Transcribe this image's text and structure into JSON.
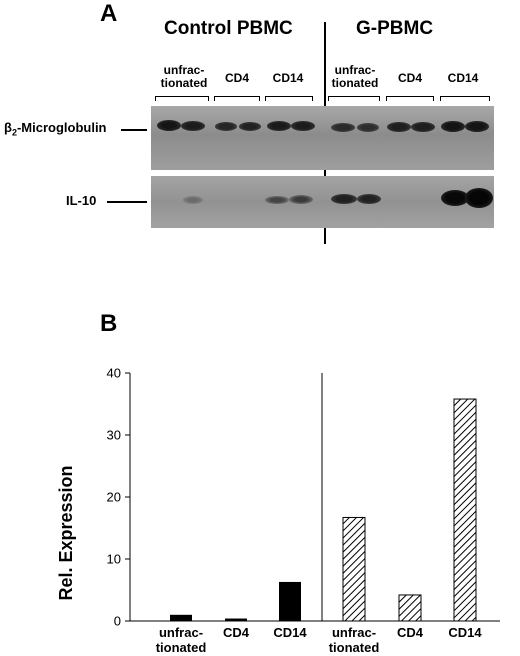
{
  "panel_a": {
    "letter": "A",
    "groups": [
      "Control PBMC",
      "G-PBMC"
    ],
    "lane_groups": [
      {
        "label_lines": [
          "unfrac-",
          "tionated"
        ]
      },
      {
        "label_lines": [
          "CD4"
        ]
      },
      {
        "label_lines": [
          "CD14"
        ]
      },
      {
        "label_lines": [
          "unfrac-",
          "tionated"
        ]
      },
      {
        "label_lines": [
          "CD4"
        ]
      },
      {
        "label_lines": [
          "CD14"
        ]
      }
    ],
    "rows": [
      {
        "label_main": "β",
        "label_sub": "2",
        "label_rest": "-Microglobulin"
      },
      {
        "label_main": "IL-10",
        "label_sub": "",
        "label_rest": ""
      }
    ]
  },
  "panel_b": {
    "letter": "B"
  },
  "colors": {
    "gel_background": "#9a9a9a",
    "band": "#1e1e1e",
    "control_bar": "#000000",
    "g_pbmc_bar": "hatched"
  },
  "chart_data": {
    "type": "bar",
    "title": "",
    "ylabel": "Rel. Expression",
    "xlabel": "",
    "ylim": [
      0,
      40
    ],
    "yticks": [
      0,
      10,
      20,
      30,
      40
    ],
    "grid": false,
    "categories": [
      "unfrac-\ntionated",
      "CD4",
      "CD14",
      "unfrac-\ntionated",
      "CD4",
      "CD14"
    ],
    "groups": [
      "Control PBMC",
      "G-PBMC"
    ],
    "values": [
      1.0,
      0.4,
      6.3,
      16.7,
      4.2,
      35.8
    ],
    "fills": [
      "solid",
      "solid",
      "solid",
      "hatched",
      "hatched",
      "hatched"
    ]
  }
}
